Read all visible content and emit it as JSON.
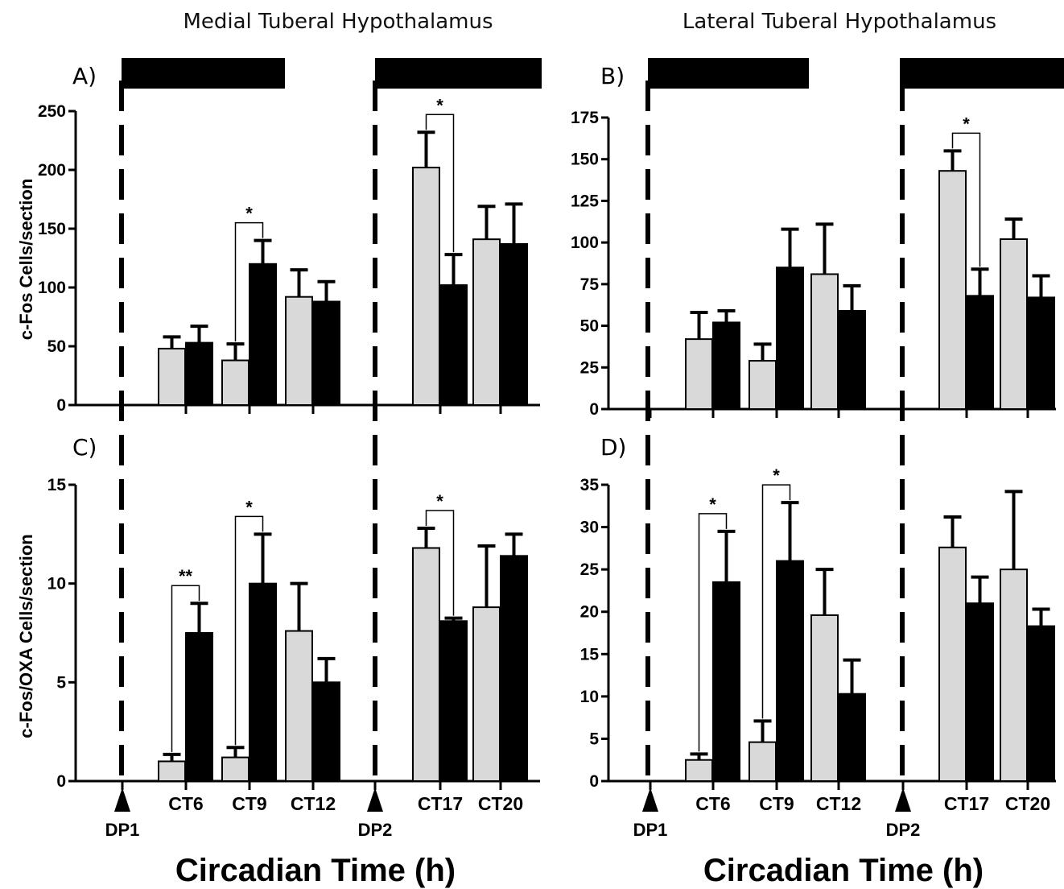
{
  "figure": {
    "col_titles": [
      "Medial Tuberal Hypothalamus",
      "Lateral Tuberal Hypothalamus"
    ],
    "ylabel_top": "c-Fos Cells/section",
    "ylabel_bottom": "c-Fos/OXA Cells/section",
    "xlabel": "Circadian Time (h)",
    "x_ticks": [
      "DP1",
      "CT6",
      "CT9",
      "CT12",
      "DP2",
      "CT17",
      "CT20"
    ],
    "colors": {
      "light_bar": "#d9d9d9",
      "dark_bar": "#000000"
    }
  },
  "chart_data": [
    {
      "panel": "A)",
      "type": "bar",
      "categories": [
        "DP1",
        "CT6",
        "CT9",
        "CT12",
        "DP2",
        "CT17",
        "CT20"
      ],
      "ylim": [
        0,
        250
      ],
      "yticks": [
        0,
        50,
        100,
        150,
        200,
        250
      ],
      "series": [
        {
          "values": [
            null,
            48,
            38,
            92,
            null,
            202,
            141
          ],
          "errors": [
            null,
            10,
            14,
            23,
            null,
            30,
            28
          ]
        },
        {
          "values": [
            null,
            53,
            120,
            88,
            null,
            102,
            137
          ],
          "errors": [
            null,
            14,
            20,
            17,
            null,
            26,
            34
          ]
        }
      ],
      "significance": [
        {
          "category": "CT9",
          "label": "*"
        },
        {
          "category": "CT17",
          "label": "*"
        }
      ]
    },
    {
      "panel": "B)",
      "type": "bar",
      "categories": [
        "DP1",
        "CT6",
        "CT9",
        "CT12",
        "DP2",
        "CT17",
        "CT20"
      ],
      "ylim": [
        0,
        175
      ],
      "yticks": [
        0,
        25,
        50,
        75,
        100,
        125,
        150,
        175
      ],
      "series": [
        {
          "values": [
            null,
            42,
            29,
            81,
            null,
            143,
            102
          ],
          "errors": [
            null,
            16,
            10,
            30,
            null,
            12,
            12
          ]
        },
        {
          "values": [
            null,
            52,
            85,
            59,
            null,
            68,
            67
          ],
          "errors": [
            null,
            7,
            23,
            15,
            null,
            16,
            13
          ]
        }
      ],
      "significance": [
        {
          "category": "CT17",
          "label": "*"
        }
      ]
    },
    {
      "panel": "C)",
      "type": "bar",
      "categories": [
        "DP1",
        "CT6",
        "CT9",
        "CT12",
        "DP2",
        "CT17",
        "CT20"
      ],
      "ylim": [
        0,
        15
      ],
      "yticks": [
        0,
        5,
        10,
        15
      ],
      "series": [
        {
          "values": [
            null,
            1.0,
            1.2,
            7.6,
            null,
            11.8,
            8.8
          ],
          "errors": [
            null,
            0.35,
            0.5,
            2.4,
            null,
            1.0,
            3.1
          ]
        },
        {
          "values": [
            null,
            7.5,
            10.0,
            5.0,
            null,
            8.1,
            11.4
          ],
          "errors": [
            null,
            1.5,
            2.5,
            1.2,
            null,
            0.15,
            1.1
          ]
        }
      ],
      "significance": [
        {
          "category": "CT6",
          "label": "**"
        },
        {
          "category": "CT9",
          "label": "*"
        },
        {
          "category": "CT17",
          "label": "*"
        }
      ]
    },
    {
      "panel": "D)",
      "type": "bar",
      "categories": [
        "DP1",
        "CT6",
        "CT9",
        "CT12",
        "DP2",
        "CT17",
        "CT20"
      ],
      "ylim": [
        0,
        35
      ],
      "yticks": [
        0,
        5,
        10,
        15,
        20,
        25,
        30,
        35
      ],
      "series": [
        {
          "values": [
            null,
            2.5,
            4.6,
            19.6,
            null,
            27.6,
            25.0
          ],
          "errors": [
            null,
            0.7,
            2.5,
            5.4,
            null,
            3.6,
            9.2
          ]
        },
        {
          "values": [
            null,
            23.5,
            26.0,
            10.3,
            null,
            21.0,
            18.3
          ],
          "errors": [
            null,
            6.0,
            6.9,
            4.0,
            null,
            3.1,
            2.0
          ]
        }
      ],
      "significance": [
        {
          "category": "CT6",
          "label": "*"
        },
        {
          "category": "CT9",
          "label": "*"
        }
      ]
    }
  ]
}
